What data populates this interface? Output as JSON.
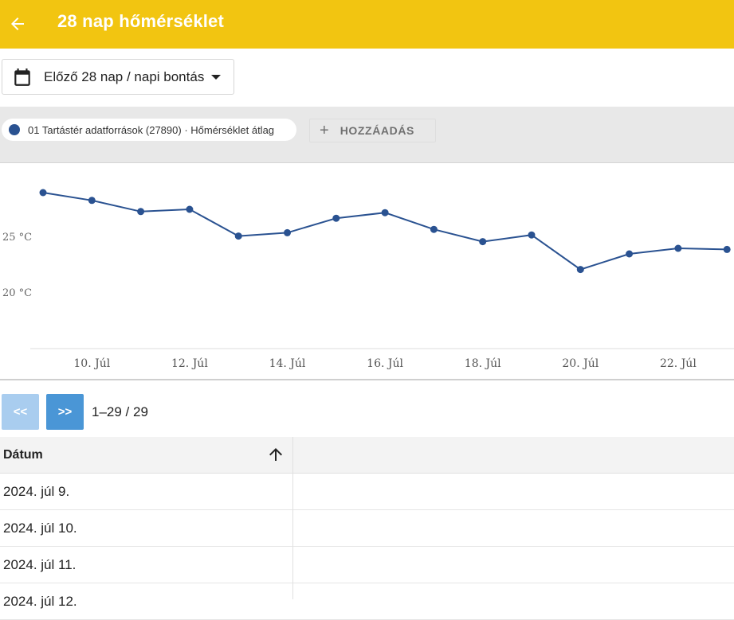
{
  "header": {
    "title": "28 nap hőmérséklet",
    "back_icon": "arrow-left-icon"
  },
  "period_select": {
    "icon": "calendar-icon",
    "value": "Előző 28 nap / napi bontás"
  },
  "series_bar": {
    "chip_label": "01 Tartástér adatforrások (27890) · Hőmérséklet átlag",
    "chip_color": "#2a5291",
    "add_label": "HOZZÁADÁS"
  },
  "chart_data": {
    "type": "line",
    "series": [
      {
        "color": "#2a5291",
        "x": [
          "2024-07-09",
          "2024-07-10",
          "2024-07-11",
          "2024-07-12",
          "2024-07-13",
          "2024-07-14",
          "2024-07-15",
          "2024-07-16",
          "2024-07-17",
          "2024-07-18",
          "2024-07-19",
          "2024-07-20",
          "2024-07-21",
          "2024-07-22",
          "2024-07-23"
        ],
        "values": [
          29.0,
          28.3,
          27.3,
          27.5,
          25.1,
          25.4,
          26.7,
          27.2,
          25.7,
          24.6,
          25.2,
          22.1,
          23.5,
          24.0,
          23.9
        ]
      }
    ],
    "yticks": [
      {
        "value": 25,
        "label": "25 °C"
      },
      {
        "value": 20,
        "label": "20 °C"
      }
    ],
    "xticks": [
      {
        "x": "2024-07-10",
        "label": "10. Júl"
      },
      {
        "x": "2024-07-12",
        "label": "12. Júl"
      },
      {
        "x": "2024-07-14",
        "label": "14. Júl"
      },
      {
        "x": "2024-07-16",
        "label": "16. Júl"
      },
      {
        "x": "2024-07-18",
        "label": "18. Júl"
      },
      {
        "x": "2024-07-20",
        "label": "20. Júl"
      },
      {
        "x": "2024-07-22",
        "label": "22. Júl"
      }
    ],
    "grid": false
  },
  "pagination": {
    "prev_label": "<<",
    "next_label": ">>",
    "info": "1–29 / 29"
  },
  "table": {
    "columns": [
      {
        "label": "Dátum",
        "sort_icon": "arrow-up-icon"
      },
      {
        "label": ""
      }
    ],
    "rows": [
      "2024. júl 9.",
      "2024. júl 10.",
      "2024. júl 11.",
      "2024. júl 12."
    ]
  },
  "colors": {
    "appbar": "#f2c511",
    "line": "#2a5291",
    "pager_next": "#4a96d6",
    "pager_prev": "#a9cdef"
  }
}
